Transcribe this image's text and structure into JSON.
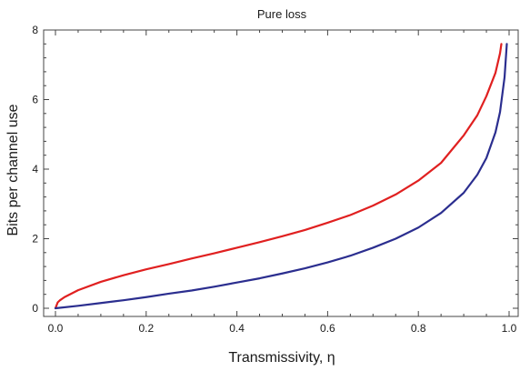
{
  "chart_data": {
    "type": "line",
    "title": "Pure loss",
    "xlabel": "Transmissivity, η",
    "ylabel": "Bits per channel use",
    "xlim": [
      0,
      1
    ],
    "ylim": [
      0,
      8
    ],
    "xticks": [
      0.0,
      0.2,
      0.4,
      0.6,
      0.8,
      1.0
    ],
    "xtick_labels": [
      "0.0",
      "0.2",
      "0.4",
      "0.6",
      "0.8",
      "1.0"
    ],
    "yticks": [
      0,
      2,
      4,
      6,
      8
    ],
    "ytick_labels": [
      "0",
      "2",
      "4",
      "6",
      "8"
    ],
    "grid": false,
    "series": [
      {
        "color": "#e02020",
        "x": [
          0,
          0.005,
          0.01,
          0.02,
          0.05,
          0.1,
          0.15,
          0.2,
          0.25,
          0.3,
          0.35,
          0.4,
          0.45,
          0.5,
          0.55,
          0.6,
          0.65,
          0.7,
          0.75,
          0.8,
          0.85,
          0.9,
          0.93,
          0.95,
          0.97,
          0.98,
          0.983
        ],
        "y": [
          0,
          0.17,
          0.23,
          0.32,
          0.52,
          0.76,
          0.95,
          1.12,
          1.27,
          1.43,
          1.58,
          1.74,
          1.9,
          2.07,
          2.25,
          2.46,
          2.68,
          2.95,
          3.27,
          3.67,
          4.18,
          4.97,
          5.55,
          6.1,
          6.77,
          7.33,
          7.6
        ]
      },
      {
        "color": "#2b2e8f",
        "x": [
          0,
          0.05,
          0.1,
          0.15,
          0.2,
          0.25,
          0.3,
          0.35,
          0.4,
          0.45,
          0.5,
          0.55,
          0.6,
          0.65,
          0.7,
          0.75,
          0.8,
          0.85,
          0.9,
          0.93,
          0.95,
          0.97,
          0.98,
          0.99,
          0.995
        ],
        "y": [
          0,
          0.07,
          0.15,
          0.23,
          0.32,
          0.42,
          0.51,
          0.62,
          0.74,
          0.86,
          1.0,
          1.15,
          1.32,
          1.51,
          1.74,
          2.0,
          2.32,
          2.74,
          3.32,
          3.84,
          4.32,
          5.06,
          5.64,
          6.64,
          7.6
        ]
      }
    ]
  }
}
